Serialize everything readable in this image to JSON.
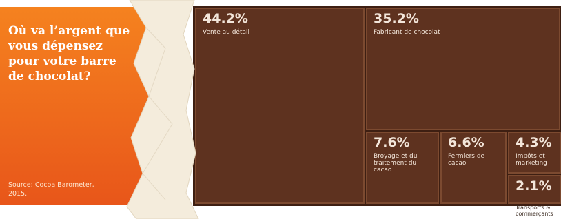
{
  "chart_data": {
    "type": "treemap",
    "title": "Où va l’argent que vous dépensez pour votre barre de chocolat?",
    "source": "Source: Cocoa Barometer, 2015.",
    "categories": [
      "Vente au détail",
      "Fabricant de chocolat",
      "Broyage et du traitement du cacao",
      "Fermiers de cacao",
      "Impôts et marketing",
      "Transports & commerçants"
    ],
    "values": [
      44.2,
      35.2,
      7.6,
      6.6,
      4.3,
      2.1
    ],
    "value_labels": [
      "44.2%",
      "35.2%",
      "7.6%",
      "6.6%",
      "4.3%",
      "2.1%"
    ],
    "color": "#5e321f"
  }
}
